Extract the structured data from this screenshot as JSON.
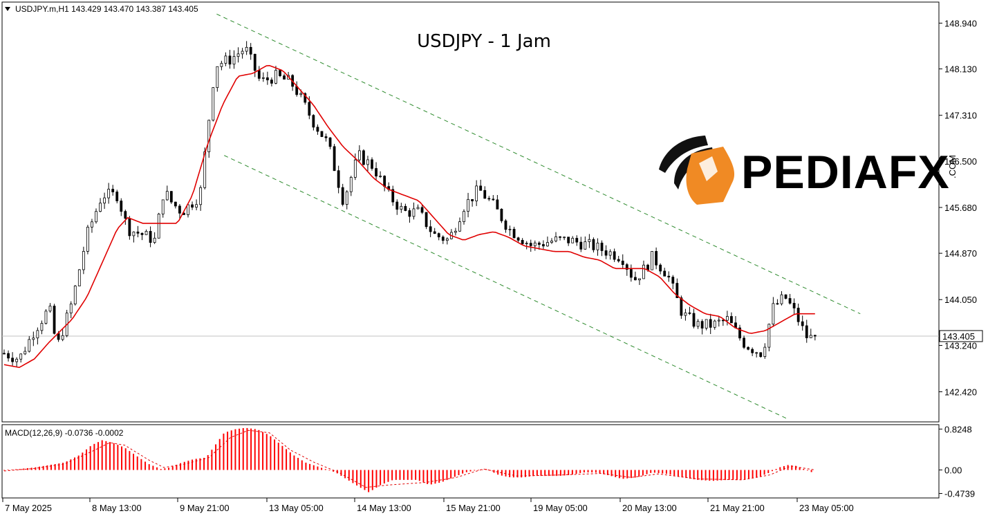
{
  "header": {
    "symbol_ohlc": "USDJPY.m,H1  143.429 143.470 143.387 143.405"
  },
  "chart_title": "USDJPY - 1 Jam",
  "brand": {
    "name": "PEDIAFX",
    "suffix": ".COM",
    "accent": "#f08a24"
  },
  "colors": {
    "ma": "#e00000",
    "channel": "#2e8b2e",
    "macd_bar": "#ff0000",
    "signal": "#e00000",
    "current_line": "#c0c0c0",
    "frame": "#000000"
  },
  "chart_data": [
    {
      "type": "candlestick",
      "title": "USDJPY - 1 Jam",
      "ylim": [
        141.9,
        149.3
      ],
      "y_ticks": [
        "148.940",
        "148.130",
        "147.310",
        "146.500",
        "145.680",
        "144.870",
        "144.050",
        "143.240",
        "142.420"
      ],
      "current_price": "143.405",
      "x_ticks": [
        "7 May 2025",
        "8 May 13:00",
        "9 May 21:00",
        "13 May 05:00",
        "14 May 13:00",
        "15 May 21:00",
        "19 May 05:00",
        "20 May 13:00",
        "21 May 21:00",
        "23 May 05:00"
      ],
      "n_bars": 195,
      "anchors": [
        [
          0,
          143.1
        ],
        [
          10,
          143.0
        ],
        [
          20,
          143.5
        ],
        [
          30,
          143.9
        ],
        [
          35,
          143.2
        ],
        [
          45,
          144.0
        ],
        [
          55,
          145.2
        ],
        [
          65,
          145.9
        ],
        [
          75,
          145.9
        ],
        [
          82,
          145.3
        ],
        [
          92,
          145.2
        ],
        [
          100,
          145.1
        ],
        [
          106,
          146.0
        ],
        [
          110,
          145.8
        ],
        [
          118,
          145.6
        ],
        [
          130,
          145.9
        ],
        [
          140,
          148.2
        ],
        [
          150,
          148.3
        ],
        [
          160,
          148.5
        ],
        [
          170,
          147.9
        ],
        [
          180,
          148.0
        ],
        [
          190,
          147.9
        ],
        [
          195,
          147.7
        ],
        [
          205,
          147.2
        ],
        [
          215,
          146.8
        ],
        [
          225,
          145.8
        ],
        [
          235,
          146.6
        ],
        [
          245,
          146.4
        ],
        [
          255,
          145.9
        ],
        [
          265,
          145.6
        ],
        [
          275,
          145.6
        ],
        [
          285,
          145.2
        ],
        [
          295,
          145.1
        ],
        [
          305,
          145.7
        ],
        [
          315,
          146.0
        ],
        [
          325,
          145.7
        ],
        [
          335,
          145.3
        ],
        [
          350,
          145.0
        ],
        [
          365,
          145.1
        ],
        [
          375,
          145.1
        ],
        [
          390,
          145.0
        ],
        [
          400,
          144.9
        ],
        [
          410,
          144.8
        ],
        [
          418,
          144.4
        ],
        [
          425,
          144.6
        ],
        [
          430,
          144.8
        ],
        [
          440,
          144.5
        ],
        [
          450,
          143.8
        ],
        [
          460,
          143.6
        ],
        [
          470,
          143.6
        ],
        [
          480,
          143.7
        ],
        [
          490,
          143.3
        ],
        [
          495,
          143.2
        ],
        [
          503,
          143.1
        ],
        [
          510,
          143.9
        ],
        [
          518,
          144.1
        ],
        [
          525,
          143.8
        ],
        [
          532,
          143.4
        ],
        [
          538,
          143.35
        ]
      ],
      "ma_anchors": [
        [
          0,
          142.9
        ],
        [
          10,
          142.85
        ],
        [
          20,
          143.0
        ],
        [
          30,
          143.3
        ],
        [
          45,
          143.7
        ],
        [
          55,
          144.1
        ],
        [
          65,
          144.7
        ],
        [
          75,
          145.3
        ],
        [
          82,
          145.5
        ],
        [
          92,
          145.4
        ],
        [
          105,
          145.4
        ],
        [
          115,
          145.4
        ],
        [
          125,
          145.9
        ],
        [
          135,
          146.8
        ],
        [
          145,
          147.5
        ],
        [
          155,
          148.0
        ],
        [
          165,
          148.05
        ],
        [
          175,
          148.2
        ],
        [
          185,
          148.1
        ],
        [
          195,
          147.8
        ],
        [
          205,
          147.5
        ],
        [
          215,
          147.1
        ],
        [
          225,
          146.75
        ],
        [
          235,
          146.5
        ],
        [
          245,
          146.2
        ],
        [
          255,
          146.0
        ],
        [
          265,
          145.9
        ],
        [
          275,
          145.8
        ],
        [
          285,
          145.5
        ],
        [
          295,
          145.2
        ],
        [
          305,
          145.1
        ],
        [
          315,
          145.2
        ],
        [
          325,
          145.25
        ],
        [
          335,
          145.15
        ],
        [
          345,
          145.0
        ],
        [
          355,
          144.95
        ],
        [
          365,
          144.9
        ],
        [
          375,
          144.9
        ],
        [
          385,
          144.8
        ],
        [
          395,
          144.75
        ],
        [
          405,
          144.6
        ],
        [
          415,
          144.6
        ],
        [
          425,
          144.6
        ],
        [
          435,
          144.45
        ],
        [
          445,
          144.15
        ],
        [
          455,
          143.95
        ],
        [
          465,
          143.8
        ],
        [
          475,
          143.75
        ],
        [
          485,
          143.55
        ],
        [
          495,
          143.45
        ],
        [
          505,
          143.5
        ],
        [
          515,
          143.65
        ],
        [
          525,
          143.8
        ],
        [
          538,
          143.8
        ]
      ],
      "channel_upper": [
        [
          141,
          149.1
        ],
        [
          568,
          143.8
        ]
      ],
      "channel_lower": [
        [
          146,
          146.6
        ],
        [
          519,
          141.95
        ]
      ]
    },
    {
      "type": "histogram",
      "title": "MACD(12,26,9) -0.0736 -0.0002",
      "ylim": [
        -0.55,
        0.9
      ],
      "y_ticks": [
        "0.8248",
        "0.00",
        "-0.4739"
      ],
      "anchors": [
        [
          0,
          0.0
        ],
        [
          10,
          0.02
        ],
        [
          20,
          0.05
        ],
        [
          30,
          0.1
        ],
        [
          40,
          0.15
        ],
        [
          50,
          0.3
        ],
        [
          58,
          0.5
        ],
        [
          65,
          0.6
        ],
        [
          72,
          0.55
        ],
        [
          80,
          0.45
        ],
        [
          88,
          0.28
        ],
        [
          96,
          0.12
        ],
        [
          104,
          0.02
        ],
        [
          110,
          0.05
        ],
        [
          118,
          0.15
        ],
        [
          126,
          0.22
        ],
        [
          134,
          0.25
        ],
        [
          140,
          0.5
        ],
        [
          146,
          0.75
        ],
        [
          153,
          0.82
        ],
        [
          160,
          0.85
        ],
        [
          168,
          0.82
        ],
        [
          176,
          0.7
        ],
        [
          184,
          0.5
        ],
        [
          192,
          0.3
        ],
        [
          200,
          0.15
        ],
        [
          210,
          0.05
        ],
        [
          220,
          -0.05
        ],
        [
          228,
          -0.2
        ],
        [
          236,
          -0.35
        ],
        [
          242,
          -0.45
        ],
        [
          250,
          -0.3
        ],
        [
          258,
          -0.2
        ],
        [
          266,
          -0.2
        ],
        [
          274,
          -0.2
        ],
        [
          282,
          -0.3
        ],
        [
          290,
          -0.25
        ],
        [
          298,
          -0.15
        ],
        [
          306,
          -0.05
        ],
        [
          314,
          0.0
        ],
        [
          320,
          0.02
        ],
        [
          328,
          -0.1
        ],
        [
          336,
          -0.15
        ],
        [
          344,
          -0.15
        ],
        [
          352,
          -0.12
        ],
        [
          360,
          -0.12
        ],
        [
          368,
          -0.12
        ],
        [
          376,
          -0.1
        ],
        [
          384,
          -0.05
        ],
        [
          392,
          -0.05
        ],
        [
          400,
          -0.1
        ],
        [
          410,
          -0.18
        ],
        [
          420,
          -0.15
        ],
        [
          430,
          -0.05
        ],
        [
          440,
          -0.08
        ],
        [
          450,
          -0.15
        ],
        [
          460,
          -0.2
        ],
        [
          470,
          -0.22
        ],
        [
          480,
          -0.2
        ],
        [
          490,
          -0.2
        ],
        [
          500,
          -0.15
        ],
        [
          508,
          -0.05
        ],
        [
          514,
          0.05
        ],
        [
          520,
          0.1
        ],
        [
          526,
          0.08
        ],
        [
          532,
          0.0
        ],
        [
          538,
          -0.07
        ]
      ],
      "signal_anchors": [
        [
          0,
          -0.02
        ],
        [
          20,
          0.03
        ],
        [
          40,
          0.12
        ],
        [
          60,
          0.4
        ],
        [
          70,
          0.55
        ],
        [
          80,
          0.5
        ],
        [
          96,
          0.2
        ],
        [
          106,
          0.05
        ],
        [
          120,
          0.12
        ],
        [
          136,
          0.25
        ],
        [
          150,
          0.65
        ],
        [
          162,
          0.8
        ],
        [
          176,
          0.75
        ],
        [
          190,
          0.4
        ],
        [
          206,
          0.15
        ],
        [
          222,
          -0.05
        ],
        [
          240,
          -0.35
        ],
        [
          256,
          -0.3
        ],
        [
          280,
          -0.25
        ],
        [
          300,
          -0.15
        ],
        [
          318,
          0.02
        ],
        [
          340,
          -0.12
        ],
        [
          370,
          -0.1
        ],
        [
          396,
          -0.07
        ],
        [
          416,
          -0.15
        ],
        [
          434,
          -0.08
        ],
        [
          460,
          -0.18
        ],
        [
          490,
          -0.2
        ],
        [
          508,
          -0.1
        ],
        [
          522,
          0.08
        ],
        [
          538,
          -0.0
        ]
      ]
    }
  ]
}
